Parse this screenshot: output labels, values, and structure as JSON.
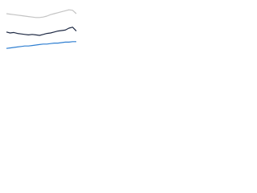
{
  "chart_data": {
    "type": "line",
    "categories": [
      null,
      null,
      null,
      null,
      null,
      null,
      null,
      null,
      null,
      null,
      null,
      null,
      null,
      null,
      null,
      null,
      null,
      null,
      null,
      null
    ],
    "series": [
      {
        "color": "#c4c4c4",
        "values": [
          80,
          79,
          78,
          77,
          76,
          75,
          74,
          73,
          72,
          72,
          73,
          75,
          78,
          80,
          82,
          84,
          86,
          88,
          87,
          80
        ]
      },
      {
        "color": "#1f2a44",
        "values": [
          42,
          40,
          41,
          39,
          38,
          37,
          36,
          37,
          36,
          35,
          37,
          39,
          40,
          42,
          44,
          45,
          46,
          50,
          52,
          44
        ]
      },
      {
        "color": "#2f7fd1",
        "values": [
          8,
          9,
          10,
          11,
          12,
          13,
          13,
          14,
          15,
          16,
          17,
          17,
          18,
          19,
          19,
          20,
          21,
          21,
          22,
          22
        ]
      }
    ],
    "ylim": [
      0,
      100
    ]
  }
}
